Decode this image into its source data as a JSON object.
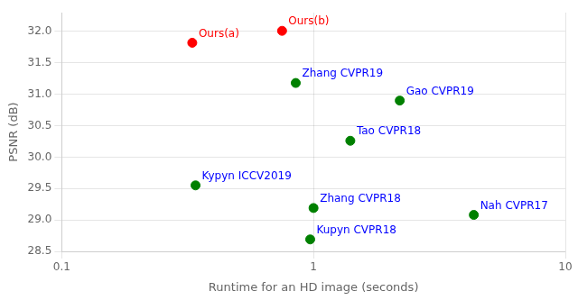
{
  "chart_data": {
    "type": "scatter",
    "xlabel": "Runtime for an HD image (seconds)",
    "ylabel": "PSNR (dB)",
    "x": [
      0.33,
      0.75,
      0.85,
      2.2,
      1.4,
      0.34,
      1.0,
      4.33,
      0.97
    ],
    "values": [
      31.82,
      32.01,
      31.18,
      30.9,
      30.26,
      29.55,
      29.19,
      29.08,
      28.69
    ],
    "colors": [
      "red",
      "red",
      "green",
      "green",
      "green",
      "green",
      "green",
      "green",
      "green"
    ],
    "annotations": [
      {
        "text": "Ours(a)",
        "x": 0.33,
        "y": 31.82,
        "color": "red"
      },
      {
        "text": "Ours(b)",
        "x": 0.75,
        "y": 32.01,
        "color": "red"
      },
      {
        "text": "Zhang CVPR19",
        "x": 0.85,
        "y": 31.18,
        "color": "blue"
      },
      {
        "text": "Gao CVPR19",
        "x": 2.2,
        "y": 30.9,
        "color": "blue"
      },
      {
        "text": "Tao CVPR18",
        "x": 1.4,
        "y": 30.26,
        "color": "blue"
      },
      {
        "text": "Kypyn ICCV2019",
        "x": 0.34,
        "y": 29.55,
        "color": "blue"
      },
      {
        "text": "Zhang CVPR18",
        "x": 1.0,
        "y": 29.19,
        "color": "blue"
      },
      {
        "text": "Nah CVPR17",
        "x": 4.33,
        "y": 29.08,
        "color": "blue"
      },
      {
        "text": "Kupyn CVPR18",
        "x": 0.97,
        "y": 28.69,
        "color": "blue"
      }
    ],
    "log": "x",
    "xlim": [
      0.1,
      10
    ],
    "ylim": [
      28.5,
      32.3
    ],
    "xticks": [
      0.1,
      1,
      10
    ],
    "yticks": [
      28.5,
      {
        "value": 29,
        "label": "29.0"
      },
      29.5,
      {
        "value": 30,
        "label": "30.0"
      },
      30.5,
      {
        "value": 31,
        "label": "31.0"
      },
      31.5,
      {
        "value": 32,
        "label": "32.0"
      }
    ],
    "grid": true,
    "legend": false
  }
}
